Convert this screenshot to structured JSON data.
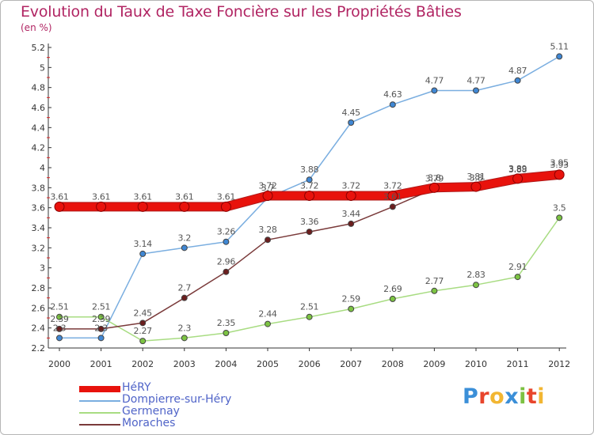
{
  "title": "Evolution du Taux de Taxe Foncière sur les Propriétés Bâties",
  "unit_label": "(en %)",
  "logo": {
    "text": "Proxiti",
    "colors": [
      "#3b8fd8",
      "#e8452c",
      "#f2b632",
      "#3b8fd8",
      "#7cc142",
      "#e8452c",
      "#f2b632"
    ]
  },
  "chart_data": {
    "type": "line",
    "title": "Evolution du Taux de Taxe Foncière sur les Propriétés Bâties",
    "ylabel": "(en %)",
    "xlabel": "",
    "x": [
      "2000",
      "2001",
      "2002",
      "2003",
      "2004",
      "2005",
      "2006",
      "2007",
      "2008",
      "2009",
      "2010",
      "2011",
      "2012"
    ],
    "ylim": [
      2.2,
      5.2
    ],
    "yticks": [
      "2.2",
      "2.4",
      "2.6",
      "2.8",
      "3",
      "3.2",
      "3.4",
      "3.6",
      "3.8",
      "4",
      "4.2",
      "4.4",
      "4.6",
      "4.8",
      "5",
      "5.2"
    ],
    "grid": false,
    "legend": "bottom-left",
    "series": [
      {
        "name": "HéRY",
        "values": [
          3.61,
          3.61,
          3.61,
          3.61,
          3.61,
          3.72,
          3.72,
          3.72,
          3.72,
          3.8,
          3.81,
          3.89,
          3.93
        ],
        "labels": [
          "3.61",
          "3.61",
          "3.61",
          "3.61",
          "3.61",
          "3.72",
          "3.72",
          "3.72",
          "3.72",
          "3.8",
          "3.81",
          "3.89",
          "3.93"
        ],
        "color": "#e8120c",
        "width": 10,
        "dot": "#e8120c"
      },
      {
        "name": "Dompierre-sur-Héry",
        "values": [
          2.3,
          2.3,
          3.14,
          3.2,
          3.26,
          3.7,
          3.88,
          4.45,
          4.63,
          4.77,
          4.77,
          4.87,
          5.11
        ],
        "labels": [
          "2.3",
          "2.3",
          "3.14",
          "3.2",
          "3.26",
          "3.7",
          "3.88",
          "4.45",
          "4.63",
          "4.77",
          "4.77",
          "4.87",
          "5.11"
        ],
        "color": "#7aaee0",
        "width": 1.5,
        "dot": "#3f87d4"
      },
      {
        "name": "Germenay",
        "values": [
          2.51,
          2.51,
          2.27,
          2.3,
          2.35,
          2.44,
          2.51,
          2.59,
          2.69,
          2.77,
          2.83,
          2.91,
          3.5
        ],
        "labels": [
          "2.51",
          "2.51",
          "2.27",
          "2.3",
          "2.35",
          "2.44",
          "2.51",
          "2.59",
          "2.69",
          "2.77",
          "2.83",
          "2.91",
          "3.5"
        ],
        "color": "#a8dc82",
        "width": 1.5,
        "dot": "#7cc442"
      },
      {
        "name": "Moraches",
        "values": [
          2.39,
          2.39,
          2.45,
          2.7,
          2.96,
          3.28,
          3.36,
          3.44,
          3.61,
          3.79,
          3.8,
          3.88,
          3.95
        ],
        "labels": [
          "2.39",
          "2.39",
          "2.45",
          "2.7",
          "2.96",
          "3.28",
          "3.36",
          "3.44",
          "3.61",
          "3.79",
          "3.8",
          "3.88",
          "3.95"
        ],
        "color": "#7a3a3a",
        "width": 1.5,
        "dot": "#6b1e1e"
      }
    ]
  }
}
